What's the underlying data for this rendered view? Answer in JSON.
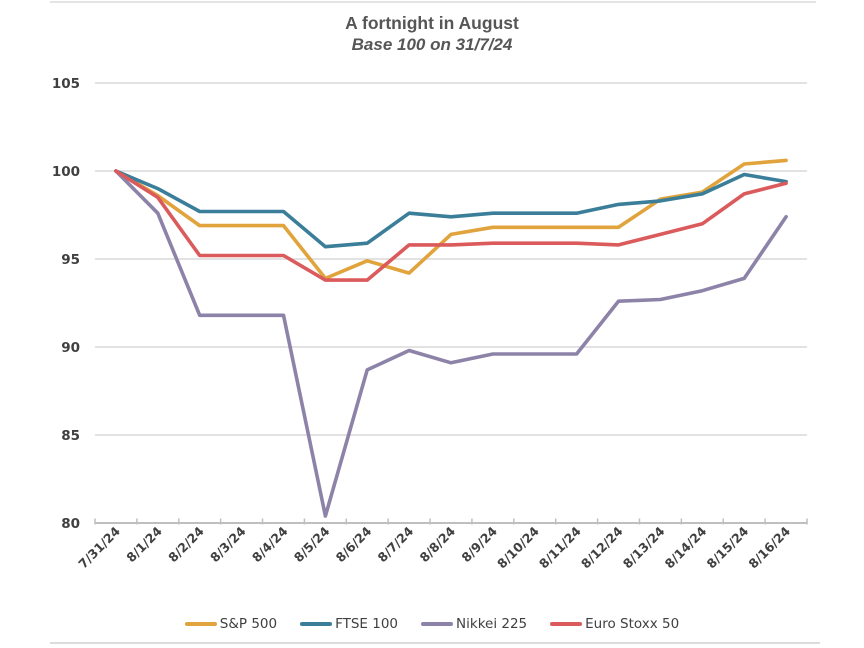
{
  "page": {
    "title": "A fortnight in August",
    "subtitle": "Base 100 on 31/7/24"
  },
  "chart_data": {
    "type": "line",
    "title": "A fortnight in August",
    "subtitle": "Base 100 on 31/7/24",
    "x": [
      "7/31/24",
      "8/1/24",
      "8/2/24",
      "8/3/24",
      "8/4/24",
      "8/5/24",
      "8/6/24",
      "8/7/24",
      "8/8/24",
      "8/9/24",
      "8/10/24",
      "8/11/24",
      "8/12/24",
      "8/13/24",
      "8/14/24",
      "8/15/24",
      "8/16/24"
    ],
    "series": [
      {
        "name": "S&P 500",
        "color": "#E1A33C",
        "values": [
          100,
          98.6,
          96.9,
          96.9,
          96.9,
          93.9,
          94.9,
          94.2,
          96.4,
          96.8,
          96.8,
          96.8,
          96.8,
          98.4,
          98.8,
          100.4,
          100.6
        ]
      },
      {
        "name": "FTSE 100",
        "color": "#3A7E99",
        "values": [
          100,
          99.0,
          97.7,
          97.7,
          97.7,
          95.7,
          95.9,
          97.6,
          97.4,
          97.6,
          97.6,
          97.6,
          98.1,
          98.3,
          98.7,
          99.8,
          99.4
        ]
      },
      {
        "name": "Nikkei 225",
        "color": "#8D83A8",
        "values": [
          100,
          97.6,
          91.8,
          91.8,
          91.8,
          80.4,
          88.7,
          89.8,
          89.1,
          89.6,
          89.6,
          89.6,
          92.6,
          92.7,
          93.2,
          93.9,
          97.4
        ]
      },
      {
        "name": "Euro Stoxx 50",
        "color": "#DB5A5C",
        "values": [
          100,
          98.5,
          95.2,
          95.2,
          95.2,
          93.8,
          93.8,
          95.8,
          95.8,
          95.9,
          95.9,
          95.9,
          95.8,
          96.4,
          97.0,
          98.7,
          99.3
        ]
      }
    ],
    "ylim": [
      80,
      105
    ],
    "yticks": [
      80,
      85,
      90,
      95,
      100,
      105
    ],
    "grid": true,
    "legend_position": "bottom",
    "axis_color": "#bfbfbf",
    "gridline_color": "#d9d9d9",
    "tick_label_color": "#404040"
  }
}
